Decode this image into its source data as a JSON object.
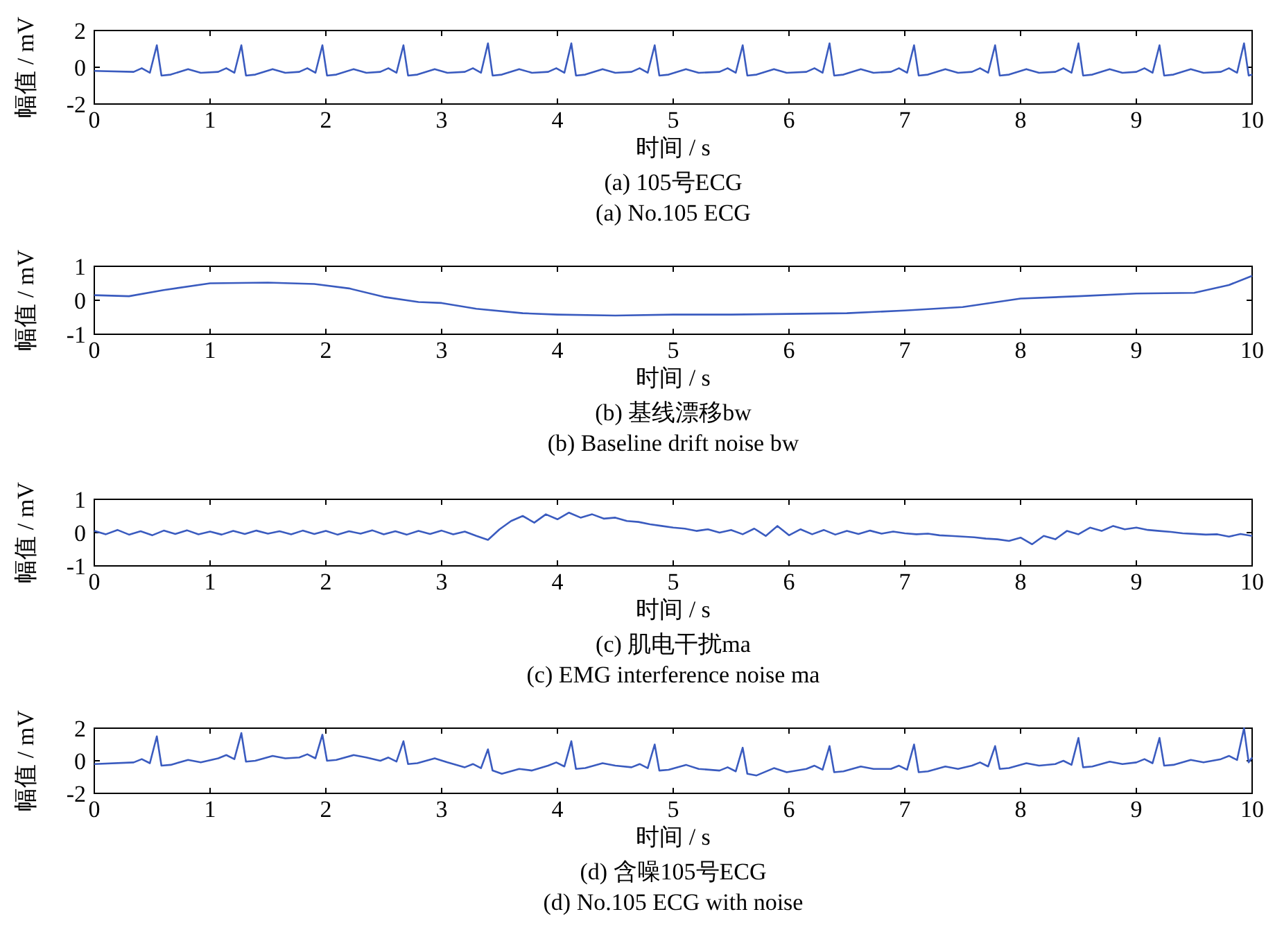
{
  "chart_data": [
    {
      "type": "line",
      "title": "(a)  105号ECG",
      "subtitle": "(a)  No.105 ECG",
      "xlabel": "时间 / s",
      "ylabel": "幅值 / mV",
      "xlim": [
        0,
        10
      ],
      "ylim": [
        -2,
        2
      ],
      "xticks": [
        0,
        1,
        2,
        3,
        4,
        5,
        6,
        7,
        8,
        9,
        10
      ],
      "yticks": [
        -2,
        0,
        2
      ],
      "grid": false,
      "series": [
        {
          "color": "#3a5bbf",
          "x": [
            0,
            0.34,
            0.41,
            0.48,
            0.54,
            0.58,
            0.66,
            0.81,
            0.92,
            1.07,
            1.14,
            1.21,
            1.27,
            1.31,
            1.39,
            1.54,
            1.65,
            1.77,
            1.84,
            1.91,
            1.97,
            2.01,
            2.09,
            2.24,
            2.35,
            2.47,
            2.54,
            2.61,
            2.67,
            2.71,
            2.79,
            2.94,
            3.05,
            3.2,
            3.27,
            3.34,
            3.4,
            3.44,
            3.52,
            3.67,
            3.78,
            3.92,
            3.99,
            4.06,
            4.12,
            4.16,
            4.24,
            4.39,
            4.5,
            4.64,
            4.71,
            4.78,
            4.84,
            4.88,
            4.96,
            5.11,
            5.22,
            5.4,
            5.47,
            5.54,
            5.6,
            5.64,
            5.72,
            5.87,
            5.98,
            6.15,
            6.22,
            6.29,
            6.35,
            6.39,
            6.47,
            6.62,
            6.73,
            6.88,
            6.95,
            7.02,
            7.08,
            7.12,
            7.2,
            7.35,
            7.46,
            7.58,
            7.65,
            7.72,
            7.78,
            7.82,
            7.9,
            8.05,
            8.16,
            8.3,
            8.37,
            8.44,
            8.5,
            8.54,
            8.62,
            8.77,
            8.88,
            9,
            9.07,
            9.14,
            9.2,
            9.24,
            9.32,
            9.47,
            9.58,
            9.73,
            9.8,
            9.87,
            9.93,
            9.97,
            10
          ],
          "values": [
            -0.2,
            -0.25,
            -0.05,
            -0.3,
            1.2,
            -0.45,
            -0.4,
            -0.1,
            -0.3,
            -0.25,
            -0.05,
            -0.3,
            1.2,
            -0.45,
            -0.4,
            -0.1,
            -0.3,
            -0.25,
            -0.05,
            -0.3,
            1.2,
            -0.45,
            -0.4,
            -0.1,
            -0.3,
            -0.25,
            -0.05,
            -0.3,
            1.2,
            -0.45,
            -0.4,
            -0.1,
            -0.3,
            -0.25,
            -0.05,
            -0.3,
            1.3,
            -0.45,
            -0.4,
            -0.1,
            -0.3,
            -0.25,
            -0.05,
            -0.3,
            1.3,
            -0.45,
            -0.4,
            -0.1,
            -0.3,
            -0.25,
            -0.05,
            -0.3,
            1.2,
            -0.45,
            -0.4,
            -0.1,
            -0.3,
            -0.25,
            -0.05,
            -0.3,
            1.2,
            -0.45,
            -0.4,
            -0.1,
            -0.3,
            -0.25,
            -0.05,
            -0.3,
            1.3,
            -0.45,
            -0.4,
            -0.1,
            -0.3,
            -0.25,
            -0.05,
            -0.3,
            1.2,
            -0.45,
            -0.4,
            -0.1,
            -0.3,
            -0.25,
            -0.05,
            -0.3,
            1.2,
            -0.45,
            -0.4,
            -0.1,
            -0.3,
            -0.25,
            -0.05,
            -0.3,
            1.3,
            -0.45,
            -0.4,
            -0.1,
            -0.3,
            -0.25,
            -0.05,
            -0.3,
            1.2,
            -0.45,
            -0.4,
            -0.1,
            -0.3,
            -0.25,
            -0.05,
            -0.3,
            1.3,
            -0.45,
            -0.4
          ]
        }
      ]
    },
    {
      "type": "line",
      "title": "(b)  基线漂移bw",
      "subtitle": "(b)  Baseline drift noise bw",
      "xlabel": "时间 / s",
      "ylabel": "幅值 / mV",
      "xlim": [
        0,
        10
      ],
      "ylim": [
        -1,
        1
      ],
      "xticks": [
        0,
        1,
        2,
        3,
        4,
        5,
        6,
        7,
        8,
        9,
        10
      ],
      "yticks": [
        -1,
        0,
        1
      ],
      "grid": false,
      "series": [
        {
          "color": "#3a5bbf",
          "x": [
            0,
            0.3,
            0.6,
            1,
            1.5,
            1.9,
            2.2,
            2.5,
            2.8,
            3,
            3.3,
            3.7,
            4,
            4.5,
            5,
            5.5,
            6,
            6.5,
            7,
            7.5,
            8,
            8.5,
            9,
            9.5,
            9.8,
            10
          ],
          "values": [
            0.15,
            0.12,
            0.3,
            0.5,
            0.52,
            0.48,
            0.35,
            0.1,
            -0.05,
            -0.08,
            -0.25,
            -0.38,
            -0.42,
            -0.45,
            -0.42,
            -0.42,
            -0.4,
            -0.38,
            -0.3,
            -0.2,
            0.05,
            0.12,
            0.2,
            0.22,
            0.45,
            0.72
          ]
        }
      ]
    },
    {
      "type": "line",
      "title": "(c)  肌电干扰ma",
      "subtitle": "(c)  EMG interference noise ma",
      "xlabel": "时间 / s",
      "ylabel": "幅值 / mV",
      "xlim": [
        0,
        10
      ],
      "ylim": [
        -1,
        1
      ],
      "xticks": [
        0,
        1,
        2,
        3,
        4,
        5,
        6,
        7,
        8,
        9,
        10
      ],
      "yticks": [
        -1,
        0,
        1
      ],
      "grid": false,
      "series": [
        {
          "color": "#3a5bbf",
          "x": [
            0,
            0.1,
            0.2,
            0.3,
            0.4,
            0.5,
            0.6,
            0.7,
            0.8,
            0.9,
            1,
            1.1,
            1.2,
            1.3,
            1.4,
            1.5,
            1.6,
            1.7,
            1.8,
            1.9,
            2,
            2.1,
            2.2,
            2.3,
            2.4,
            2.5,
            2.6,
            2.7,
            2.8,
            2.9,
            3,
            3.1,
            3.2,
            3.3,
            3.4,
            3.5,
            3.6,
            3.7,
            3.8,
            3.9,
            4,
            4.1,
            4.2,
            4.3,
            4.4,
            4.5,
            4.6,
            4.7,
            4.8,
            4.9,
            5,
            5.1,
            5.2,
            5.3,
            5.4,
            5.5,
            5.6,
            5.7,
            5.8,
            5.9,
            6,
            6.1,
            6.2,
            6.3,
            6.4,
            6.5,
            6.6,
            6.7,
            6.8,
            6.9,
            7,
            7.1,
            7.2,
            7.3,
            7.4,
            7.5,
            7.6,
            7.7,
            7.8,
            7.9,
            8,
            8.1,
            8.2,
            8.3,
            8.4,
            8.5,
            8.6,
            8.7,
            8.8,
            8.9,
            9,
            9.1,
            9.2,
            9.3,
            9.4,
            9.5,
            9.6,
            9.7,
            9.8,
            9.9,
            10
          ],
          "values": [
            0.05,
            -0.05,
            0.08,
            -0.06,
            0.04,
            -0.08,
            0.06,
            -0.04,
            0.07,
            -0.05,
            0.03,
            -0.06,
            0.05,
            -0.04,
            0.06,
            -0.03,
            0.04,
            -0.05,
            0.06,
            -0.04,
            0.05,
            -0.06,
            0.04,
            -0.03,
            0.07,
            -0.05,
            0.04,
            -0.06,
            0.05,
            -0.04,
            0.06,
            -0.05,
            0.03,
            -0.1,
            -0.22,
            0.1,
            0.35,
            0.5,
            0.3,
            0.55,
            0.4,
            0.6,
            0.45,
            0.55,
            0.42,
            0.45,
            0.35,
            0.32,
            0.25,
            0.2,
            0.15,
            0.12,
            0.05,
            0.1,
            0,
            0.08,
            -0.05,
            0.12,
            -0.1,
            0.2,
            -0.08,
            0.1,
            -0.05,
            0.08,
            -0.06,
            0.05,
            -0.04,
            0.06,
            -0.03,
            0.03,
            -0.02,
            -0.05,
            -0.03,
            -0.08,
            -0.1,
            -0.12,
            -0.14,
            -0.18,
            -0.2,
            -0.25,
            -0.15,
            -0.35,
            -0.1,
            -0.2,
            0.05,
            -0.05,
            0.15,
            0.05,
            0.2,
            0.1,
            0.15,
            0.08,
            0.05,
            0.02,
            -0.02,
            -0.04,
            -0.06,
            -0.05,
            -0.12,
            -0.04,
            -0.1
          ]
        }
      ]
    },
    {
      "type": "line",
      "title": "(d)  含噪105号ECG",
      "subtitle": "(d)  No.105 ECG with noise",
      "xlabel": "时间 / s",
      "ylabel": "幅值 / mV",
      "xlim": [
        0,
        10
      ],
      "ylim": [
        -2,
        2
      ],
      "xticks": [
        0,
        1,
        2,
        3,
        4,
        5,
        6,
        7,
        8,
        9,
        10
      ],
      "yticks": [
        -2,
        0,
        2
      ],
      "grid": false,
      "series": [
        {
          "color": "#3a5bbf",
          "x": [
            0,
            0.34,
            0.41,
            0.48,
            0.54,
            0.58,
            0.66,
            0.81,
            0.92,
            1.07,
            1.14,
            1.21,
            1.27,
            1.31,
            1.39,
            1.54,
            1.65,
            1.77,
            1.84,
            1.91,
            1.97,
            2.01,
            2.09,
            2.24,
            2.35,
            2.47,
            2.54,
            2.61,
            2.67,
            2.71,
            2.79,
            2.94,
            3.05,
            3.2,
            3.27,
            3.34,
            3.4,
            3.44,
            3.52,
            3.67,
            3.78,
            3.92,
            3.99,
            4.06,
            4.12,
            4.16,
            4.24,
            4.39,
            4.5,
            4.64,
            4.71,
            4.78,
            4.84,
            4.88,
            4.96,
            5.11,
            5.22,
            5.4,
            5.47,
            5.54,
            5.6,
            5.64,
            5.72,
            5.87,
            5.98,
            6.15,
            6.22,
            6.29,
            6.35,
            6.39,
            6.47,
            6.62,
            6.73,
            6.88,
            6.95,
            7.02,
            7.08,
            7.12,
            7.2,
            7.35,
            7.46,
            7.58,
            7.65,
            7.72,
            7.78,
            7.82,
            7.9,
            8.05,
            8.16,
            8.3,
            8.37,
            8.44,
            8.5,
            8.54,
            8.62,
            8.77,
            8.88,
            9,
            9.07,
            9.14,
            9.2,
            9.24,
            9.32,
            9.47,
            9.58,
            9.73,
            9.8,
            9.87,
            9.93,
            9.97,
            10
          ],
          "values": [
            -0.2,
            -0.1,
            0.1,
            -0.15,
            1.5,
            -0.3,
            -0.25,
            0.05,
            -0.1,
            0.15,
            0.35,
            0.1,
            1.7,
            -0.05,
            0,
            0.3,
            0.15,
            0.2,
            0.4,
            0.15,
            1.6,
            0,
            0.05,
            0.35,
            0.2,
            0,
            0.2,
            -0.05,
            1.2,
            -0.2,
            -0.15,
            0.15,
            -0.1,
            -0.4,
            -0.2,
            -0.45,
            0.7,
            -0.6,
            -0.8,
            -0.5,
            -0.6,
            -0.3,
            -0.1,
            -0.35,
            1.2,
            -0.5,
            -0.45,
            -0.15,
            -0.3,
            -0.4,
            -0.2,
            -0.45,
            1,
            -0.6,
            -0.55,
            -0.25,
            -0.5,
            -0.6,
            -0.4,
            -0.65,
            0.8,
            -0.8,
            -0.9,
            -0.45,
            -0.7,
            -0.5,
            -0.3,
            -0.55,
            0.9,
            -0.7,
            -0.65,
            -0.35,
            -0.5,
            -0.5,
            -0.3,
            -0.55,
            1,
            -0.7,
            -0.65,
            -0.35,
            -0.5,
            -0.3,
            -0.1,
            -0.35,
            0.9,
            -0.5,
            -0.45,
            -0.15,
            -0.3,
            -0.2,
            0,
            -0.25,
            1.4,
            -0.4,
            -0.35,
            -0.05,
            -0.2,
            -0.1,
            0.1,
            -0.15,
            1.4,
            -0.3,
            -0.25,
            0.05,
            -0.1,
            0.1,
            0.3,
            0.05,
            2,
            -0.1,
            0.2
          ]
        }
      ]
    }
  ]
}
